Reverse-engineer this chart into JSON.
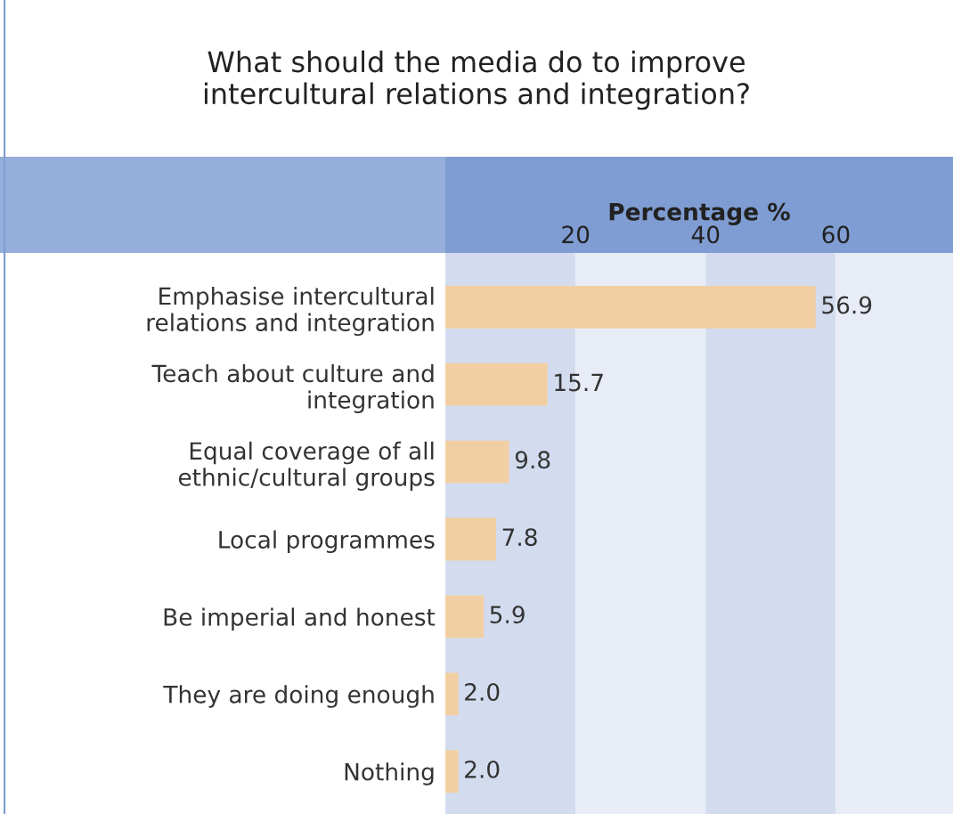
{
  "chart_data": {
    "type": "bar",
    "orientation": "horizontal",
    "title": "What should the media do to improve\nintercultural relations and integration?",
    "xlabel": "Percentage %",
    "categories": [
      "Emphasise intercultural\nrelations and integration",
      "Teach about culture and\nintegration",
      "Equal coverage of all\nethnic/cultural groups",
      "Local programmes",
      "Be imperial and honest",
      "They are doing enough",
      "Nothing"
    ],
    "values": [
      56.9,
      15.7,
      9.8,
      7.8,
      5.9,
      2.0,
      2.0
    ],
    "value_labels": [
      "56.9",
      "15.7",
      "9.8",
      "7.8",
      "5.9",
      "2.0",
      "2.0"
    ],
    "color": "#f2cfa2",
    "xlim": [
      0,
      78
    ],
    "xticks": [
      20,
      40,
      60
    ],
    "bands": [
      {
        "axis": "x",
        "from": 0,
        "to": 20,
        "label": null,
        "color": "#d3dcef"
      },
      {
        "axis": "x",
        "from": 20,
        "to": 40,
        "label": null,
        "color": "#e7ecf7"
      },
      {
        "axis": "x",
        "from": 40,
        "to": 60,
        "label": null,
        "color": "#d3dcef"
      },
      {
        "axis": "x",
        "from": 60,
        "to": 78,
        "label": null,
        "color": "#e7ecf7"
      }
    ],
    "grid": false,
    "legend": false
  }
}
